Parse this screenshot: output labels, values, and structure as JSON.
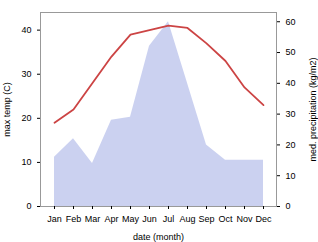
{
  "chart_data": {
    "type": "line",
    "categories": [
      "Jan",
      "Feb",
      "Mar",
      "Apr",
      "May",
      "Jun",
      "Jul",
      "Aug",
      "Sep",
      "Oct",
      "Nov",
      "Dec"
    ],
    "series": [
      {
        "type": "area",
        "axis": "y2",
        "color": "#c5ccee",
        "values": [
          16,
          22,
          14,
          28,
          29,
          52,
          60,
          40,
          20,
          15,
          15,
          15
        ]
      },
      {
        "type": "line",
        "color": "#cc4444",
        "values": [
          19,
          22,
          28,
          34,
          39,
          40,
          41,
          40.5,
          37,
          33,
          27,
          23
        ]
      }
    ],
    "xlabel": "date (month)",
    "ylabel": "max temp (C)",
    "y2label": "med. precipitation (kg/m2)",
    "ylim": [
      0,
      44
    ],
    "yticks": [
      0,
      10,
      20,
      30,
      40
    ],
    "y2lim": [
      0,
      63
    ],
    "y2ticks": [
      0,
      10,
      20,
      30,
      40,
      50,
      60
    ]
  }
}
